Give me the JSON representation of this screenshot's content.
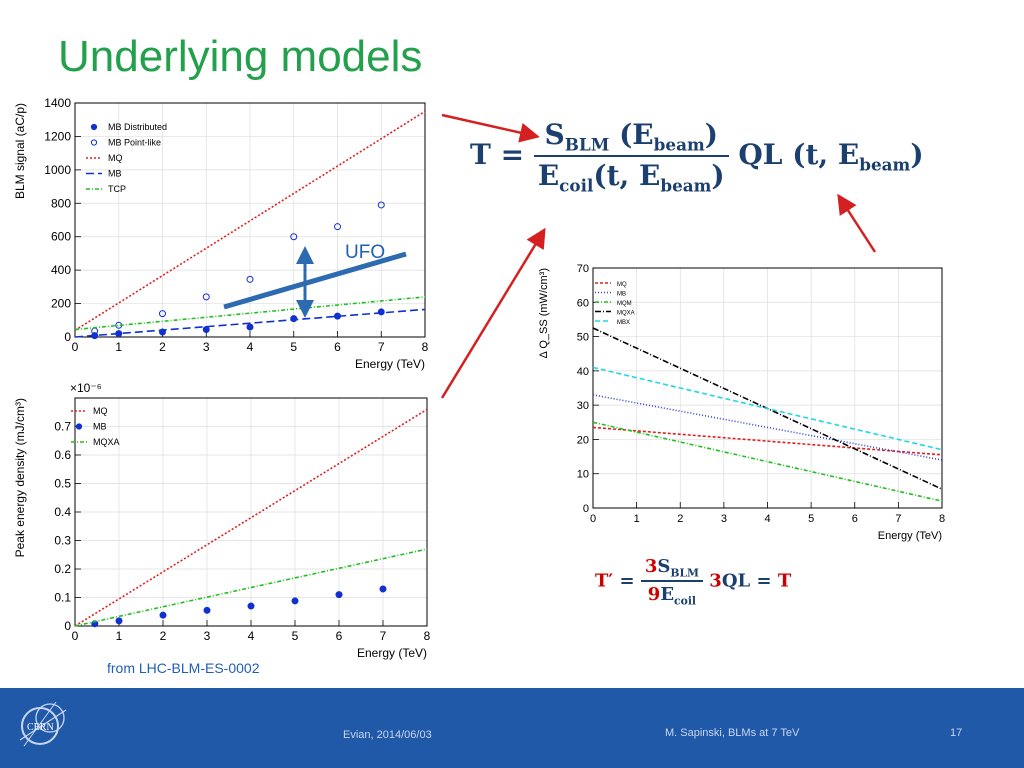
{
  "title": "Underlying models",
  "source_note": "from LHC-BLM-ES-0002",
  "ufo_label": "UFO",
  "formula_main": {
    "T": "T",
    "eq": "=",
    "num_S": "S",
    "num_S_sub": "BLM",
    "num_E": "(E",
    "num_E_sub": "beam",
    "num_close": ")",
    "den_E": "E",
    "den_E_sub": "coil",
    "den_args": "(t, E",
    "den_args_sub": "beam",
    "den_close": ")",
    "ql": "QL",
    "ql_args": "(t, E",
    "ql_args_sub": "beam",
    "ql_close": ")"
  },
  "formula_red": {
    "T": "T",
    "prime": "′",
    "eq": "=",
    "num_coef": "3",
    "num_S": "S",
    "num_S_sub": "BLM",
    "den_coef": "9",
    "den_E": "E",
    "den_E_sub": "coil",
    "rhs_coef": "3",
    "rhs_ql": "QL",
    "rhs_eq": "=",
    "rhs_T": "T"
  },
  "footer": {
    "left": "Evian, 2014/06/03",
    "center": "M. Sapinski, BLMs at 7 TeV",
    "page": "17",
    "logo_text": "CERN"
  },
  "colors": {
    "title": "#22a04b",
    "footer_bg": "#2059a8",
    "arrow": "#d42020",
    "formula": "#1b3f6e",
    "formula_red": "#cc0000"
  },
  "chart_data": [
    {
      "type": "line",
      "ylabel": "BLM signal (aC/p)",
      "xlabel": "Energy (TeV)",
      "xlim": [
        0,
        8
      ],
      "ylim": [
        0,
        1400
      ],
      "xticks": [
        "0",
        "1",
        "2",
        "3",
        "4",
        "5",
        "6",
        "7",
        "8"
      ],
      "yticks": [
        "0",
        "200",
        "400",
        "600",
        "800",
        "1000",
        "1200",
        "1400"
      ],
      "legend_position": "top-left",
      "series": [
        {
          "name": "MB Distributed",
          "kind": "points",
          "filled": true,
          "color": "#1030d0",
          "x": [
            0.45,
            1,
            2,
            3,
            4,
            5,
            6,
            7
          ],
          "y": [
            8,
            20,
            30,
            45,
            60,
            110,
            125,
            150
          ]
        },
        {
          "name": "MB Point-like",
          "kind": "points",
          "filled": false,
          "color": "#1030d0",
          "x": [
            0.45,
            1,
            2,
            3,
            4,
            5,
            6,
            7
          ],
          "y": [
            35,
            70,
            140,
            240,
            345,
            600,
            660,
            790
          ]
        },
        {
          "name": "MQ",
          "kind": "line",
          "dash": "2,2",
          "color": "#e02020",
          "x": [
            0,
            8
          ],
          "y": [
            40,
            1350
          ]
        },
        {
          "name": "MB",
          "kind": "line",
          "dash": "8,4",
          "color": "#1030d0",
          "x": [
            0,
            8
          ],
          "y": [
            0,
            165
          ]
        },
        {
          "name": "TCP",
          "kind": "line",
          "dash": "4,2,1,2",
          "color": "#20c020",
          "x": [
            0,
            8
          ],
          "y": [
            45,
            240
          ]
        }
      ]
    },
    {
      "type": "line",
      "ylabel": "Peak energy density (mJ/cm³)",
      "xlabel": "Energy (TeV)",
      "y_multiplier": "×10⁻⁶",
      "xlim": [
        0,
        8
      ],
      "ylim": [
        0,
        0.8
      ],
      "xticks": [
        "0",
        "1",
        "2",
        "3",
        "4",
        "5",
        "6",
        "7",
        "8"
      ],
      "yticks": [
        "0",
        "0.1",
        "0.2",
        "0.3",
        "0.4",
        "0.5",
        "0.6",
        "0.7"
      ],
      "legend_position": "top-left",
      "series": [
        {
          "name": "MQ",
          "kind": "line",
          "dash": "2,2",
          "color": "#e02020",
          "x": [
            0,
            8
          ],
          "y": [
            0,
            0.76
          ]
        },
        {
          "name": "MB",
          "kind": "points",
          "filled": true,
          "color": "#1030d0",
          "x": [
            0.45,
            1,
            2,
            3,
            4,
            5,
            6,
            7
          ],
          "y": [
            0.008,
            0.018,
            0.038,
            0.055,
            0.07,
            0.088,
            0.11,
            0.13
          ]
        },
        {
          "name": "MQXA",
          "kind": "line",
          "dash": "4,2,1,2",
          "color": "#20c020",
          "x": [
            0,
            8
          ],
          "y": [
            0,
            0.27
          ]
        }
      ]
    },
    {
      "type": "line",
      "ylabel": "Δ Q_SS (mW/cm³)",
      "xlabel": "Energy (TeV)",
      "xlim": [
        0,
        8
      ],
      "ylim": [
        0,
        70
      ],
      "xticks": [
        "0",
        "1",
        "2",
        "3",
        "4",
        "5",
        "6",
        "7",
        "8"
      ],
      "yticks": [
        "0",
        "10",
        "20",
        "30",
        "40",
        "50",
        "60",
        "70"
      ],
      "legend_position": "top-left",
      "series": [
        {
          "name": "MQ",
          "kind": "line",
          "dash": "3,2",
          "color": "#e02020",
          "x": [
            0,
            8
          ],
          "y": [
            23.5,
            15.5
          ]
        },
        {
          "name": "MB",
          "kind": "line",
          "dash": "1,2",
          "color": "#3040d0",
          "x": [
            0,
            8
          ],
          "y": [
            33,
            14
          ]
        },
        {
          "name": "MQM",
          "kind": "line",
          "dash": "4,2,1,2",
          "color": "#20c020",
          "x": [
            0,
            8
          ],
          "y": [
            25,
            2
          ]
        },
        {
          "name": "MQXA",
          "kind": "line",
          "dash": "6,2,1,2",
          "color": "#000000",
          "x": [
            0,
            8
          ],
          "y": [
            52.5,
            5.5
          ]
        },
        {
          "name": "MBX",
          "kind": "line",
          "dash": "5,3",
          "color": "#20d8e0",
          "x": [
            0,
            8
          ],
          "y": [
            41,
            17
          ]
        }
      ]
    }
  ]
}
